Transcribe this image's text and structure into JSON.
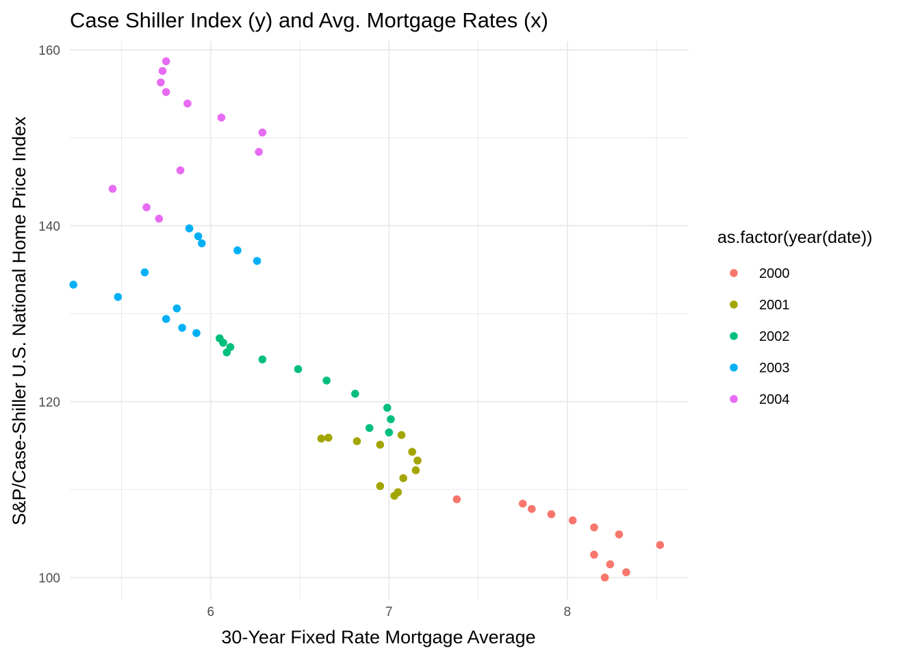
{
  "chart_data": {
    "type": "scatter",
    "title": "Case Shiller Index (y) and Avg. Mortgage Rates (x)",
    "xlabel": "30-Year Fixed Rate Mortgage Average",
    "ylabel": "S&P/Case-Shiller U.S. National Home Price Index",
    "xlim": [
      5.21,
      8.68
    ],
    "ylim": [
      97.5,
      161
    ],
    "x_ticks": [
      6,
      7,
      8
    ],
    "x_tick_labels": [
      "6",
      "7",
      "8"
    ],
    "x_minor_ticks": [
      5.5,
      6.5,
      7.5,
      8.5
    ],
    "y_ticks": [
      100,
      120,
      140,
      160
    ],
    "y_tick_labels": [
      "100",
      "120",
      "140",
      "160"
    ],
    "y_minor_ticks": [
      110,
      130,
      150
    ],
    "grid": true,
    "legend": {
      "title": "as.factor(year(date))",
      "position": "right"
    },
    "series": [
      {
        "name": "2000",
        "color": "#F8766D",
        "points": [
          [
            8.21,
            100.0
          ],
          [
            8.33,
            100.6
          ],
          [
            8.24,
            101.5
          ],
          [
            8.15,
            102.6
          ],
          [
            8.52,
            103.7
          ],
          [
            8.29,
            104.9
          ],
          [
            8.15,
            105.7
          ],
          [
            8.03,
            106.5
          ],
          [
            7.91,
            107.2
          ],
          [
            7.8,
            107.8
          ],
          [
            7.75,
            108.4
          ],
          [
            7.38,
            108.9
          ]
        ]
      },
      {
        "name": "2001",
        "color": "#A3A500",
        "points": [
          [
            7.03,
            109.3
          ],
          [
            7.05,
            109.7
          ],
          [
            6.95,
            110.4
          ],
          [
            7.08,
            111.3
          ],
          [
            7.15,
            112.2
          ],
          [
            7.16,
            113.3
          ],
          [
            7.13,
            114.3
          ],
          [
            6.95,
            115.1
          ],
          [
            6.82,
            115.5
          ],
          [
            6.62,
            115.8
          ],
          [
            6.66,
            115.9
          ],
          [
            7.07,
            116.2
          ]
        ]
      },
      {
        "name": "2002",
        "color": "#00BF7D",
        "points": [
          [
            7.0,
            116.5
          ],
          [
            6.89,
            117.0
          ],
          [
            7.01,
            118.0
          ],
          [
            6.99,
            119.3
          ],
          [
            6.81,
            120.9
          ],
          [
            6.65,
            122.4
          ],
          [
            6.49,
            123.7
          ],
          [
            6.29,
            124.8
          ],
          [
            6.09,
            125.6
          ],
          [
            6.11,
            126.2
          ],
          [
            6.07,
            126.7
          ],
          [
            6.05,
            127.2
          ]
        ]
      },
      {
        "name": "2003",
        "color": "#00B0F6",
        "points": [
          [
            5.92,
            127.8
          ],
          [
            5.84,
            128.4
          ],
          [
            5.75,
            129.4
          ],
          [
            5.81,
            130.6
          ],
          [
            5.48,
            131.9
          ],
          [
            5.23,
            133.3
          ],
          [
            5.63,
            134.7
          ],
          [
            6.26,
            136.0
          ],
          [
            6.15,
            137.2
          ],
          [
            5.95,
            138.0
          ],
          [
            5.93,
            138.8
          ],
          [
            5.88,
            139.7
          ]
        ]
      },
      {
        "name": "2004",
        "color": "#E76BF3",
        "points": [
          [
            5.71,
            140.8
          ],
          [
            5.64,
            142.1
          ],
          [
            5.45,
            144.2
          ],
          [
            5.83,
            146.3
          ],
          [
            6.27,
            148.4
          ],
          [
            6.29,
            150.6
          ],
          [
            6.06,
            152.3
          ],
          [
            5.87,
            153.9
          ],
          [
            5.75,
            155.2
          ],
          [
            5.72,
            156.3
          ],
          [
            5.73,
            157.6
          ],
          [
            5.75,
            158.7
          ]
        ]
      }
    ]
  }
}
